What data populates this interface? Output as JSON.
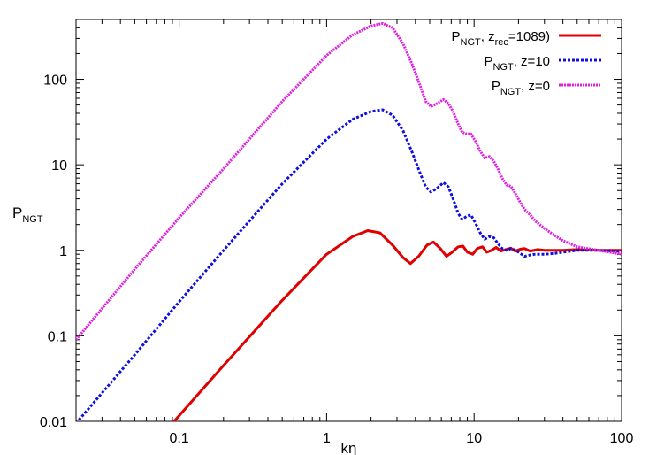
{
  "chart_data": {
    "type": "line",
    "title": "",
    "xlabel": "kη",
    "ylabel": {
      "main": "P",
      "sub": "NGT"
    },
    "xscale": "log",
    "yscale": "log",
    "xlim": [
      0.02,
      100
    ],
    "ylim": [
      0.01,
      500
    ],
    "grid": false,
    "legend_position": "top-right",
    "x_ticks": [
      0.1,
      1,
      10,
      100
    ],
    "x_tick_labels": [
      "0.1",
      "1",
      "10",
      "100"
    ],
    "y_ticks": [
      0.01,
      0.1,
      1,
      10,
      100
    ],
    "y_tick_labels": [
      "0.01",
      "0.1",
      "1",
      "10",
      "100"
    ],
    "series": [
      {
        "legend": {
          "p": "P",
          "sub1": "NGT",
          "mid": ", z",
          "sub2": "rec",
          "tail": "=1089)"
        },
        "color": "#e00000",
        "style": "solid",
        "points": [
          [
            0.09,
            0.0095
          ],
          [
            0.2,
            0.045
          ],
          [
            0.5,
            0.26
          ],
          [
            1.0,
            0.9
          ],
          [
            1.5,
            1.45
          ],
          [
            1.9,
            1.7
          ],
          [
            2.3,
            1.6
          ],
          [
            2.8,
            1.15
          ],
          [
            3.3,
            0.82
          ],
          [
            3.7,
            0.7
          ],
          [
            4.2,
            0.85
          ],
          [
            4.8,
            1.15
          ],
          [
            5.3,
            1.25
          ],
          [
            5.9,
            1.05
          ],
          [
            6.5,
            0.85
          ],
          [
            7.1,
            0.95
          ],
          [
            7.8,
            1.1
          ],
          [
            8.4,
            1.12
          ],
          [
            9.0,
            0.95
          ],
          [
            9.8,
            0.9
          ],
          [
            10.5,
            1.05
          ],
          [
            11.4,
            1.1
          ],
          [
            12.2,
            0.95
          ],
          [
            13.1,
            1.0
          ],
          [
            14.1,
            1.08
          ],
          [
            15.2,
            0.98
          ],
          [
            16.4,
            1.02
          ],
          [
            17.7,
            1.06
          ],
          [
            19.0,
            0.98
          ],
          [
            20.5,
            1.03
          ],
          [
            22.0,
            1.05
          ],
          [
            24.0,
            0.98
          ],
          [
            27.0,
            1.02
          ],
          [
            30.0,
            1.0
          ],
          [
            40.0,
            1.0
          ],
          [
            50.0,
            1.02
          ],
          [
            70.0,
            1.0
          ],
          [
            100.0,
            1.0
          ]
        ]
      },
      {
        "legend": {
          "p": "P",
          "sub1": "NGT",
          "mid": ", z=10",
          "sub2": "",
          "tail": ""
        },
        "color": "#1010dd",
        "style": "dotted",
        "points": [
          [
            0.02,
            0.0095
          ],
          [
            0.05,
            0.06
          ],
          [
            0.1,
            0.25
          ],
          [
            0.2,
            1.0
          ],
          [
            0.5,
            6.0
          ],
          [
            1.0,
            20.0
          ],
          [
            1.5,
            34.0
          ],
          [
            2.0,
            42.0
          ],
          [
            2.4,
            44.0
          ],
          [
            2.8,
            38.0
          ],
          [
            3.3,
            25.0
          ],
          [
            3.8,
            14.0
          ],
          [
            4.3,
            8.0
          ],
          [
            4.7,
            5.5
          ],
          [
            5.1,
            4.8
          ],
          [
            5.6,
            5.3
          ],
          [
            6.2,
            6.2
          ],
          [
            6.7,
            5.5
          ],
          [
            7.2,
            4.0
          ],
          [
            7.8,
            2.7
          ],
          [
            8.3,
            2.3
          ],
          [
            8.9,
            2.5
          ],
          [
            9.5,
            2.6
          ],
          [
            10.2,
            2.1
          ],
          [
            11.0,
            1.6
          ],
          [
            11.8,
            1.35
          ],
          [
            12.7,
            1.45
          ],
          [
            13.6,
            1.4
          ],
          [
            14.5,
            1.2
          ],
          [
            15.5,
            1.05
          ],
          [
            16.6,
            1.0
          ],
          [
            17.8,
            1.05
          ],
          [
            19.2,
            1.0
          ],
          [
            20.6,
            0.92
          ],
          [
            22.0,
            0.85
          ],
          [
            24.0,
            0.88
          ],
          [
            26.0,
            0.9
          ],
          [
            30.0,
            0.9
          ],
          [
            35.0,
            0.92
          ],
          [
            40.0,
            0.95
          ],
          [
            50.0,
            1.0
          ],
          [
            70.0,
            1.0
          ],
          [
            100.0,
            0.97
          ]
        ]
      },
      {
        "legend": {
          "p": "P",
          "sub1": "NGT",
          "mid": ", z=0",
          "sub2": "",
          "tail": ""
        },
        "color": "#e020e0",
        "style": "dotted",
        "points": [
          [
            0.02,
            0.09
          ],
          [
            0.05,
            0.6
          ],
          [
            0.1,
            2.4
          ],
          [
            0.2,
            9.0
          ],
          [
            0.5,
            55.0
          ],
          [
            1.0,
            190.0
          ],
          [
            1.5,
            330.0
          ],
          [
            2.0,
            420.0
          ],
          [
            2.4,
            450.0
          ],
          [
            2.8,
            400.0
          ],
          [
            3.3,
            260.0
          ],
          [
            3.8,
            150.0
          ],
          [
            4.3,
            85.0
          ],
          [
            4.7,
            55.0
          ],
          [
            5.1,
            48.0
          ],
          [
            5.6,
            52.0
          ],
          [
            6.2,
            58.0
          ],
          [
            6.7,
            52.0
          ],
          [
            7.2,
            42.0
          ],
          [
            7.8,
            30.0
          ],
          [
            8.3,
            24.0
          ],
          [
            8.9,
            23.0
          ],
          [
            9.5,
            23.0
          ],
          [
            10.2,
            19.0
          ],
          [
            11.0,
            14.5
          ],
          [
            11.8,
            12.0
          ],
          [
            12.7,
            12.5
          ],
          [
            13.6,
            11.0
          ],
          [
            14.5,
            9.0
          ],
          [
            15.5,
            7.0
          ],
          [
            16.6,
            5.8
          ],
          [
            17.8,
            5.6
          ],
          [
            19.2,
            4.5
          ],
          [
            20.6,
            3.6
          ],
          [
            22.0,
            3.0
          ],
          [
            24.0,
            2.6
          ],
          [
            26.0,
            2.2
          ],
          [
            30.0,
            1.8
          ],
          [
            35.0,
            1.5
          ],
          [
            40.0,
            1.3
          ],
          [
            50.0,
            1.1
          ],
          [
            70.0,
            1.0
          ],
          [
            100.0,
            0.9
          ]
        ]
      }
    ]
  }
}
